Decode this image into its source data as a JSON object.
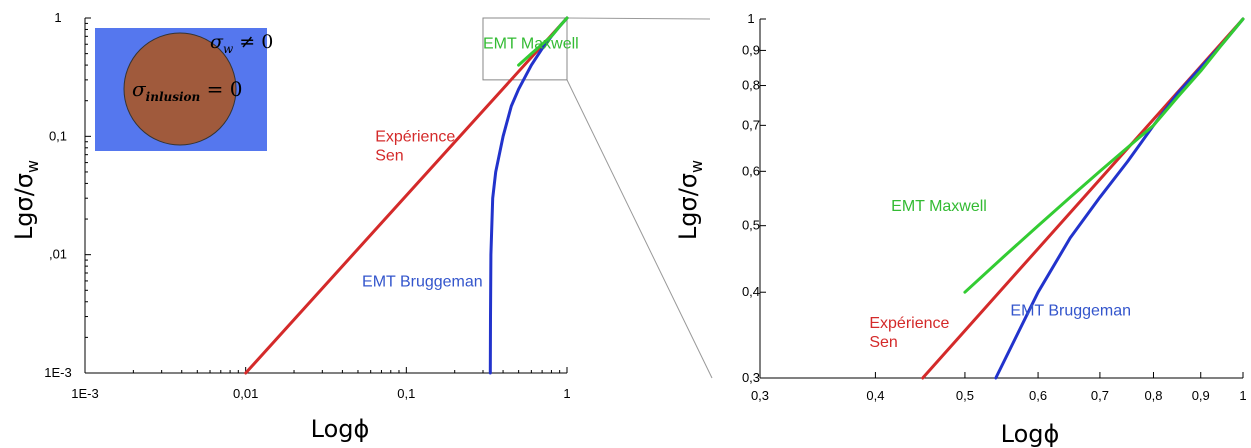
{
  "chart_data": [
    {
      "type": "line",
      "panel": "left",
      "xscale": "log",
      "yscale": "log",
      "xlim": [
        0.001,
        1
      ],
      "ylim": [
        0.001,
        1
      ],
      "xticks": [
        {
          "value": 0.001,
          "label": "1E-3"
        },
        {
          "value": 0.01,
          "label": "0,01"
        },
        {
          "value": 0.1,
          "label": "0,1"
        },
        {
          "value": 1,
          "label": "1"
        }
      ],
      "yticks": [
        {
          "value": 0.001,
          "label": "1E-3"
        },
        {
          "value": 0.01,
          "label": ",01"
        },
        {
          "value": 0.1,
          "label": "0,1"
        },
        {
          "value": 1,
          "label": "1"
        }
      ],
      "xlabel": "Logϕ",
      "ylabel": "Lgσ/σ",
      "ylabel_sub": "w",
      "grid": false,
      "series": [
        {
          "key": "sen",
          "color": "#d42a2a",
          "x": [
            0.01,
            1
          ],
          "y": [
            0.001,
            1
          ]
        },
        {
          "key": "bruggeman",
          "color": "#2233cc",
          "x": [
            0.333,
            0.334,
            0.336,
            0.345,
            0.36,
            0.4,
            0.45,
            0.5,
            0.55,
            0.6,
            0.7,
            0.8,
            0.9,
            1
          ],
          "y": [
            0.001,
            0.003,
            0.01,
            0.03,
            0.05,
            0.1,
            0.18,
            0.25,
            0.32,
            0.4,
            0.55,
            0.7,
            0.85,
            1
          ]
        },
        {
          "key": "maxwell",
          "color": "#33cc33",
          "x": [
            0.5,
            0.6,
            0.7,
            0.8,
            0.9,
            1
          ],
          "y": [
            0.4,
            0.5,
            0.6,
            0.7,
            0.85,
            1
          ]
        }
      ],
      "annotations": [
        {
          "key": "maxwell",
          "lines": [
            "EMT Maxwell"
          ],
          "color": "#33bb33",
          "x": 0.3,
          "y": 0.55
        },
        {
          "key": "sen",
          "lines": [
            "Expérience",
            "Sen"
          ],
          "color": "#d42a2a",
          "x": 0.064,
          "y": 0.09
        },
        {
          "key": "bruggeman",
          "lines": [
            "EMT Bruggeman"
          ],
          "color": "#3355cc",
          "x": 0.053,
          "y": 0.0054
        }
      ],
      "inset": {
        "outer_label": "σ",
        "outer_label_sub": "w",
        "outer_label_rest": " ≠ 0",
        "inner_label": "σ",
        "inner_label_sub": "inlusion",
        "inner_label_rest": " = 0",
        "outer_color": "#5577ee",
        "inner_color": "#a05a3c"
      },
      "zoom_box": {
        "x": [
          0.3,
          1
        ],
        "y": [
          0.3,
          1
        ]
      }
    },
    {
      "type": "line",
      "panel": "right",
      "xscale": "log",
      "yscale": "log",
      "xlim": [
        0.3,
        1
      ],
      "ylim": [
        0.3,
        1
      ],
      "xticks": [
        {
          "value": 0.3,
          "label": "0,3"
        },
        {
          "value": 0.4,
          "label": "0,4"
        },
        {
          "value": 0.5,
          "label": "0,5"
        },
        {
          "value": 0.6,
          "label": "0,6"
        },
        {
          "value": 0.7,
          "label": "0,7"
        },
        {
          "value": 0.8,
          "label": "0,8"
        },
        {
          "value": 0.9,
          "label": "0,9"
        },
        {
          "value": 1,
          "label": "1"
        }
      ],
      "yticks": [
        {
          "value": 0.3,
          "label": "0,3"
        },
        {
          "value": 0.4,
          "label": "0,4"
        },
        {
          "value": 0.5,
          "label": "0,5"
        },
        {
          "value": 0.6,
          "label": "0,6"
        },
        {
          "value": 0.7,
          "label": "0,7"
        },
        {
          "value": 0.8,
          "label": "0,8"
        },
        {
          "value": 0.9,
          "label": "0,9"
        },
        {
          "value": 1,
          "label": "1"
        }
      ],
      "xlabel": "Logϕ",
      "ylabel": "Lgσ/σ",
      "ylabel_sub": "w",
      "grid": false,
      "series": [
        {
          "key": "sen",
          "color": "#d42a2a",
          "x": [
            0.45,
            1
          ],
          "y": [
            0.3,
            1
          ]
        },
        {
          "key": "bruggeman",
          "color": "#2233cc",
          "x": [
            0.54,
            0.6,
            0.65,
            0.7,
            0.75,
            0.8,
            0.85,
            0.9,
            0.95,
            1
          ],
          "y": [
            0.3,
            0.4,
            0.48,
            0.55,
            0.62,
            0.7,
            0.78,
            0.85,
            0.92,
            1
          ]
        },
        {
          "key": "maxwell",
          "color": "#33cc33",
          "x": [
            0.5,
            0.55,
            0.6,
            0.65,
            0.7,
            0.75,
            0.8,
            0.85,
            0.9,
            0.95,
            1
          ],
          "y": [
            0.4,
            0.45,
            0.5,
            0.55,
            0.6,
            0.65,
            0.7,
            0.77,
            0.84,
            0.92,
            1
          ]
        }
      ],
      "annotations": [
        {
          "key": "maxwell",
          "lines": [
            "EMT Maxwell"
          ],
          "color": "#33bb33",
          "x": 0.416,
          "y": 0.525
        },
        {
          "key": "sen",
          "lines": [
            "Expérience",
            "Sen"
          ],
          "color": "#d42a2a",
          "x": 0.394,
          "y": 0.355
        },
        {
          "key": "bruggeman",
          "lines": [
            "EMT Bruggeman"
          ],
          "color": "#3355cc",
          "x": 0.56,
          "y": 0.37
        }
      ]
    }
  ]
}
